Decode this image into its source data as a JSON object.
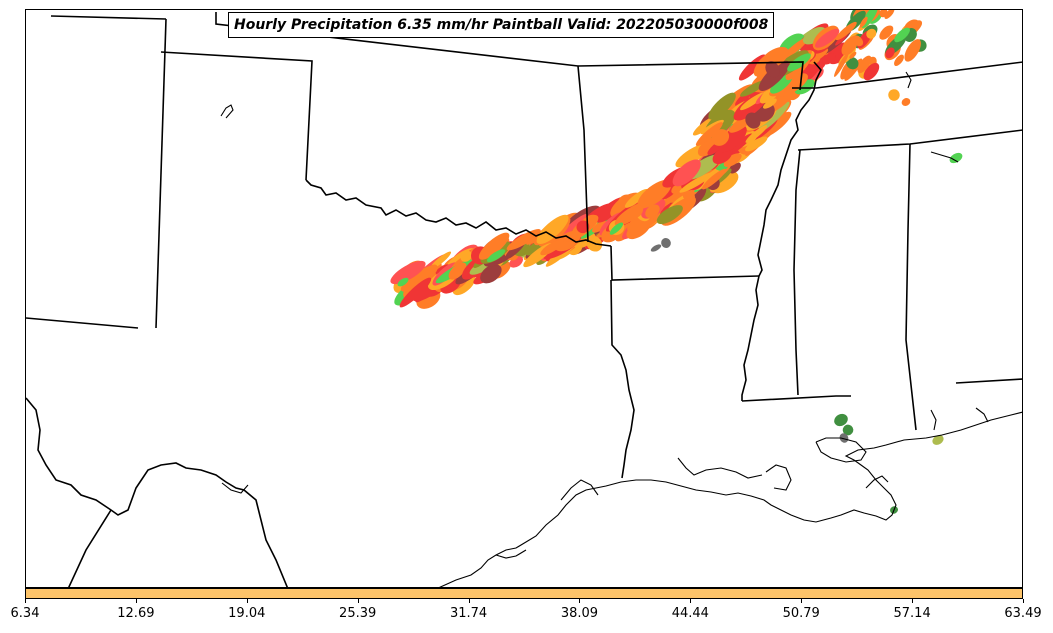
{
  "title": "Hourly Precipitation 6.35 mm/hr Paintball Valid: 202205030000f008",
  "colorbar": {
    "color": "#fdc46a",
    "ticks": [
      "6.34",
      "12.69",
      "19.04",
      "25.39",
      "31.74",
      "38.09",
      "44.44",
      "50.79",
      "57.14",
      "63.49"
    ]
  },
  "paintball_colors": [
    "#ff6600",
    "#ff9900",
    "#ee1111",
    "#ff3333",
    "#8b1a1a",
    "#808000",
    "#a0b030",
    "#33cc33",
    "#1e7b1e",
    "#555555"
  ]
}
